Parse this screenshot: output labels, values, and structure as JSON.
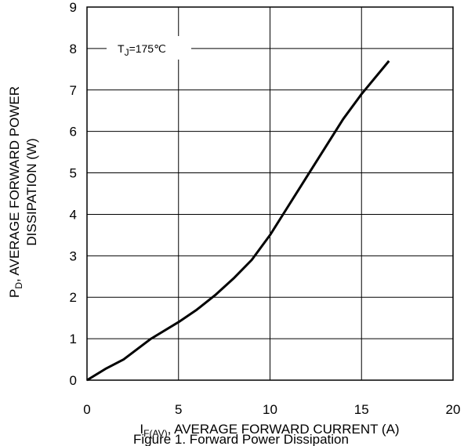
{
  "chart_data": {
    "type": "line",
    "annotation": {
      "base": "T",
      "sub": "J",
      "rest": "=175℃"
    },
    "xlabel": {
      "base": "I",
      "sub": "F(AV)",
      "rest": ", AVERAGE FORWARD CURRENT (A)"
    },
    "ylabel": {
      "base": "P",
      "sub": "D",
      "rest": ", AVERAGE FORWARD POWER",
      "line2": "DISSIPATION (W)"
    },
    "caption": "Figure 1. Forward Power Dissipation",
    "x": [
      0,
      1,
      2,
      3.5,
      5,
      6,
      7,
      8,
      9,
      10,
      11,
      12,
      13,
      14,
      15,
      16.5
    ],
    "values": [
      0,
      0.27,
      0.5,
      1.0,
      1.4,
      1.7,
      2.05,
      2.45,
      2.9,
      3.5,
      4.2,
      4.9,
      5.6,
      6.3,
      6.9,
      7.7
    ],
    "color": "#000000",
    "xlim": [
      0,
      20
    ],
    "xticks": [
      0,
      5,
      10,
      15,
      20
    ],
    "ylim": [
      0,
      9
    ],
    "yticks": [
      0,
      1,
      2,
      3,
      4,
      5,
      6,
      7,
      8,
      9
    ],
    "grid": true
  }
}
